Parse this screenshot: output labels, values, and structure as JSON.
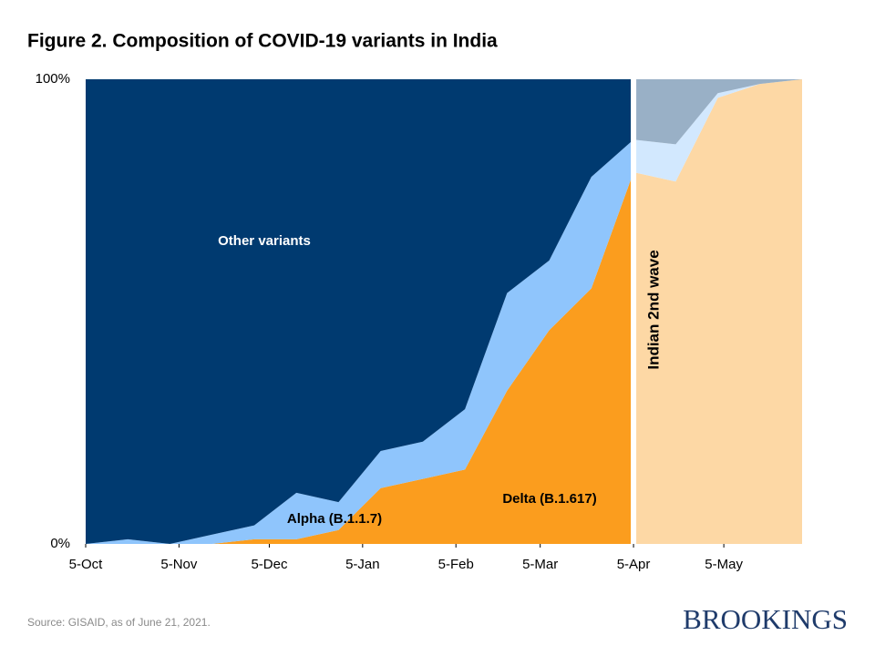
{
  "chart_data": {
    "type": "stacked_area",
    "title": "Figure 2. Composition of COVID-19 variants in India",
    "x": [
      0,
      14,
      28,
      42,
      56,
      70,
      84,
      98,
      112,
      126,
      140,
      154,
      168,
      182,
      196,
      210,
      224,
      238
    ],
    "xlim": [
      0,
      238
    ],
    "xticks": [
      {
        "value": 0,
        "label": "5-Oct"
      },
      {
        "value": 31,
        "label": "5-Nov"
      },
      {
        "value": 61,
        "label": "5-Dec"
      },
      {
        "value": 92,
        "label": "5-Jan"
      },
      {
        "value": 123,
        "label": "5-Feb"
      },
      {
        "value": 151,
        "label": "5-Mar"
      },
      {
        "value": 182,
        "label": "5-Apr"
      },
      {
        "value": 212,
        "label": "5-May"
      }
    ],
    "ylim": [
      0,
      100
    ],
    "yticks": [
      {
        "value": 0,
        "label": "0%"
      },
      {
        "value": 100,
        "label": "100%"
      }
    ],
    "series": [
      {
        "name": "Delta (B.1.617)",
        "color": "#fb9d1e",
        "values": [
          0,
          0,
          0,
          0,
          1,
          1,
          3,
          12,
          14,
          16,
          33,
          46,
          55,
          80,
          78,
          96,
          99,
          100
        ]
      },
      {
        "name": "Alpha (B.1.1.7)",
        "color": "#8fc5fc",
        "values": [
          0,
          1,
          0,
          2,
          3,
          10,
          6,
          8,
          8,
          13,
          21,
          15,
          24,
          7,
          8,
          1,
          0,
          0
        ]
      },
      {
        "name": "Other variants",
        "color": "#003a70",
        "values": [
          100,
          99,
          100,
          98,
          96,
          89,
          91,
          80,
          78,
          71,
          46,
          39,
          21,
          13,
          14,
          3,
          1,
          0
        ]
      }
    ],
    "highlight": {
      "from": 182,
      "label": "Indian 2nd wave"
    },
    "source": "Source: GISAID,  as of June 21, 2021.",
    "brand": "BROOKINGS"
  }
}
